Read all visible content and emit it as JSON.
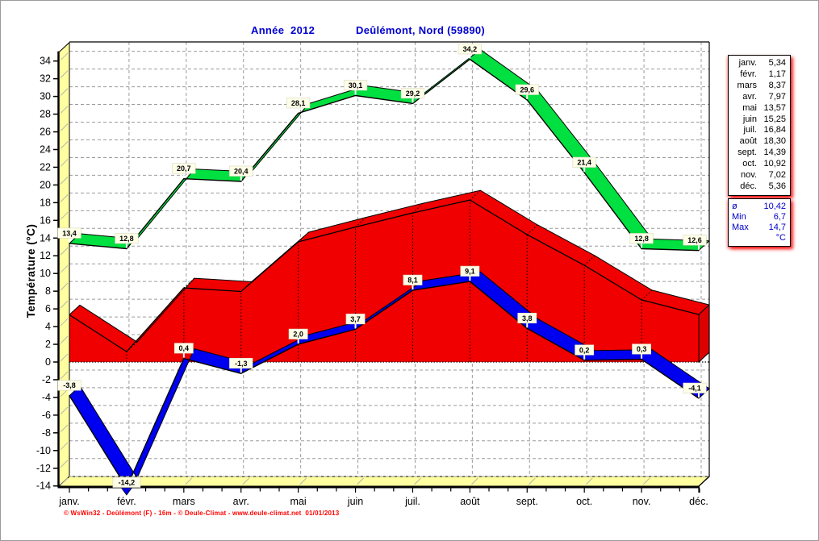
{
  "title": {
    "year_label": "Année  2012",
    "location": "Deûlémont, Nord (59890)",
    "color": "#0000d0"
  },
  "chart_data": {
    "type": "line",
    "title": "Année 2012 — Deûlémont, Nord (59890)",
    "ylabel": "Température  (°C)",
    "xlabel": "",
    "ylim": [
      -14,
      34
    ],
    "ytick_step": 2,
    "grid": true,
    "legend_position": "right",
    "categories": [
      "janv.",
      "févr.",
      "mars",
      "avr.",
      "mai",
      "juin",
      "juil.",
      "août",
      "sept.",
      "oct.",
      "nov.",
      "déc."
    ],
    "series": [
      {
        "name": "max-temperature",
        "style": "ribbon",
        "color": "#00e040",
        "values": [
          13.4,
          12.8,
          20.7,
          20.4,
          28.1,
          30.1,
          29.2,
          34.2,
          29.6,
          21.4,
          12.8,
          12.6
        ]
      },
      {
        "name": "mean-temperature",
        "style": "area",
        "color": "#f00000",
        "values": [
          5.34,
          1.17,
          8.37,
          7.97,
          13.57,
          15.25,
          16.84,
          18.3,
          14.39,
          10.92,
          7.02,
          5.36
        ]
      },
      {
        "name": "min-temperature",
        "style": "ribbon",
        "color": "#0000f0",
        "values": [
          -3.8,
          -14.2,
          0.4,
          -1.3,
          2.0,
          3.7,
          8.1,
          9.1,
          3.8,
          0.2,
          0.3,
          -4.1
        ]
      }
    ],
    "colors": {
      "wall": "#ffffa0",
      "grid": "#9c9c9c",
      "label_box": "#ffffe8",
      "axis": "#000000"
    }
  },
  "legend": {
    "rows": [
      {
        "label": "janv.",
        "value": "5,34"
      },
      {
        "label": "févr.",
        "value": "1,17"
      },
      {
        "label": "mars",
        "value": "8,37"
      },
      {
        "label": "avr.",
        "value": "7,97"
      },
      {
        "label": "mai",
        "value": "13,57"
      },
      {
        "label": "juin",
        "value": "15,25"
      },
      {
        "label": "juil.",
        "value": "16,84"
      },
      {
        "label": "août",
        "value": "18,30"
      },
      {
        "label": "sept.",
        "value": "14,39"
      },
      {
        "label": "oct.",
        "value": "10,92"
      },
      {
        "label": "nov.",
        "value": "7,02"
      },
      {
        "label": "déc.",
        "value": "5,36"
      }
    ],
    "summary": [
      {
        "label": "ø",
        "value": "10,42"
      },
      {
        "label": "Min",
        "value": "6,7"
      },
      {
        "label": "Max",
        "value": "14,7"
      }
    ],
    "unit": "°C"
  },
  "credit": "© WsWin32 - Deûlémont (F) - 16m - © Deule-Climat - www.deule-climat.net  01/01/2013"
}
